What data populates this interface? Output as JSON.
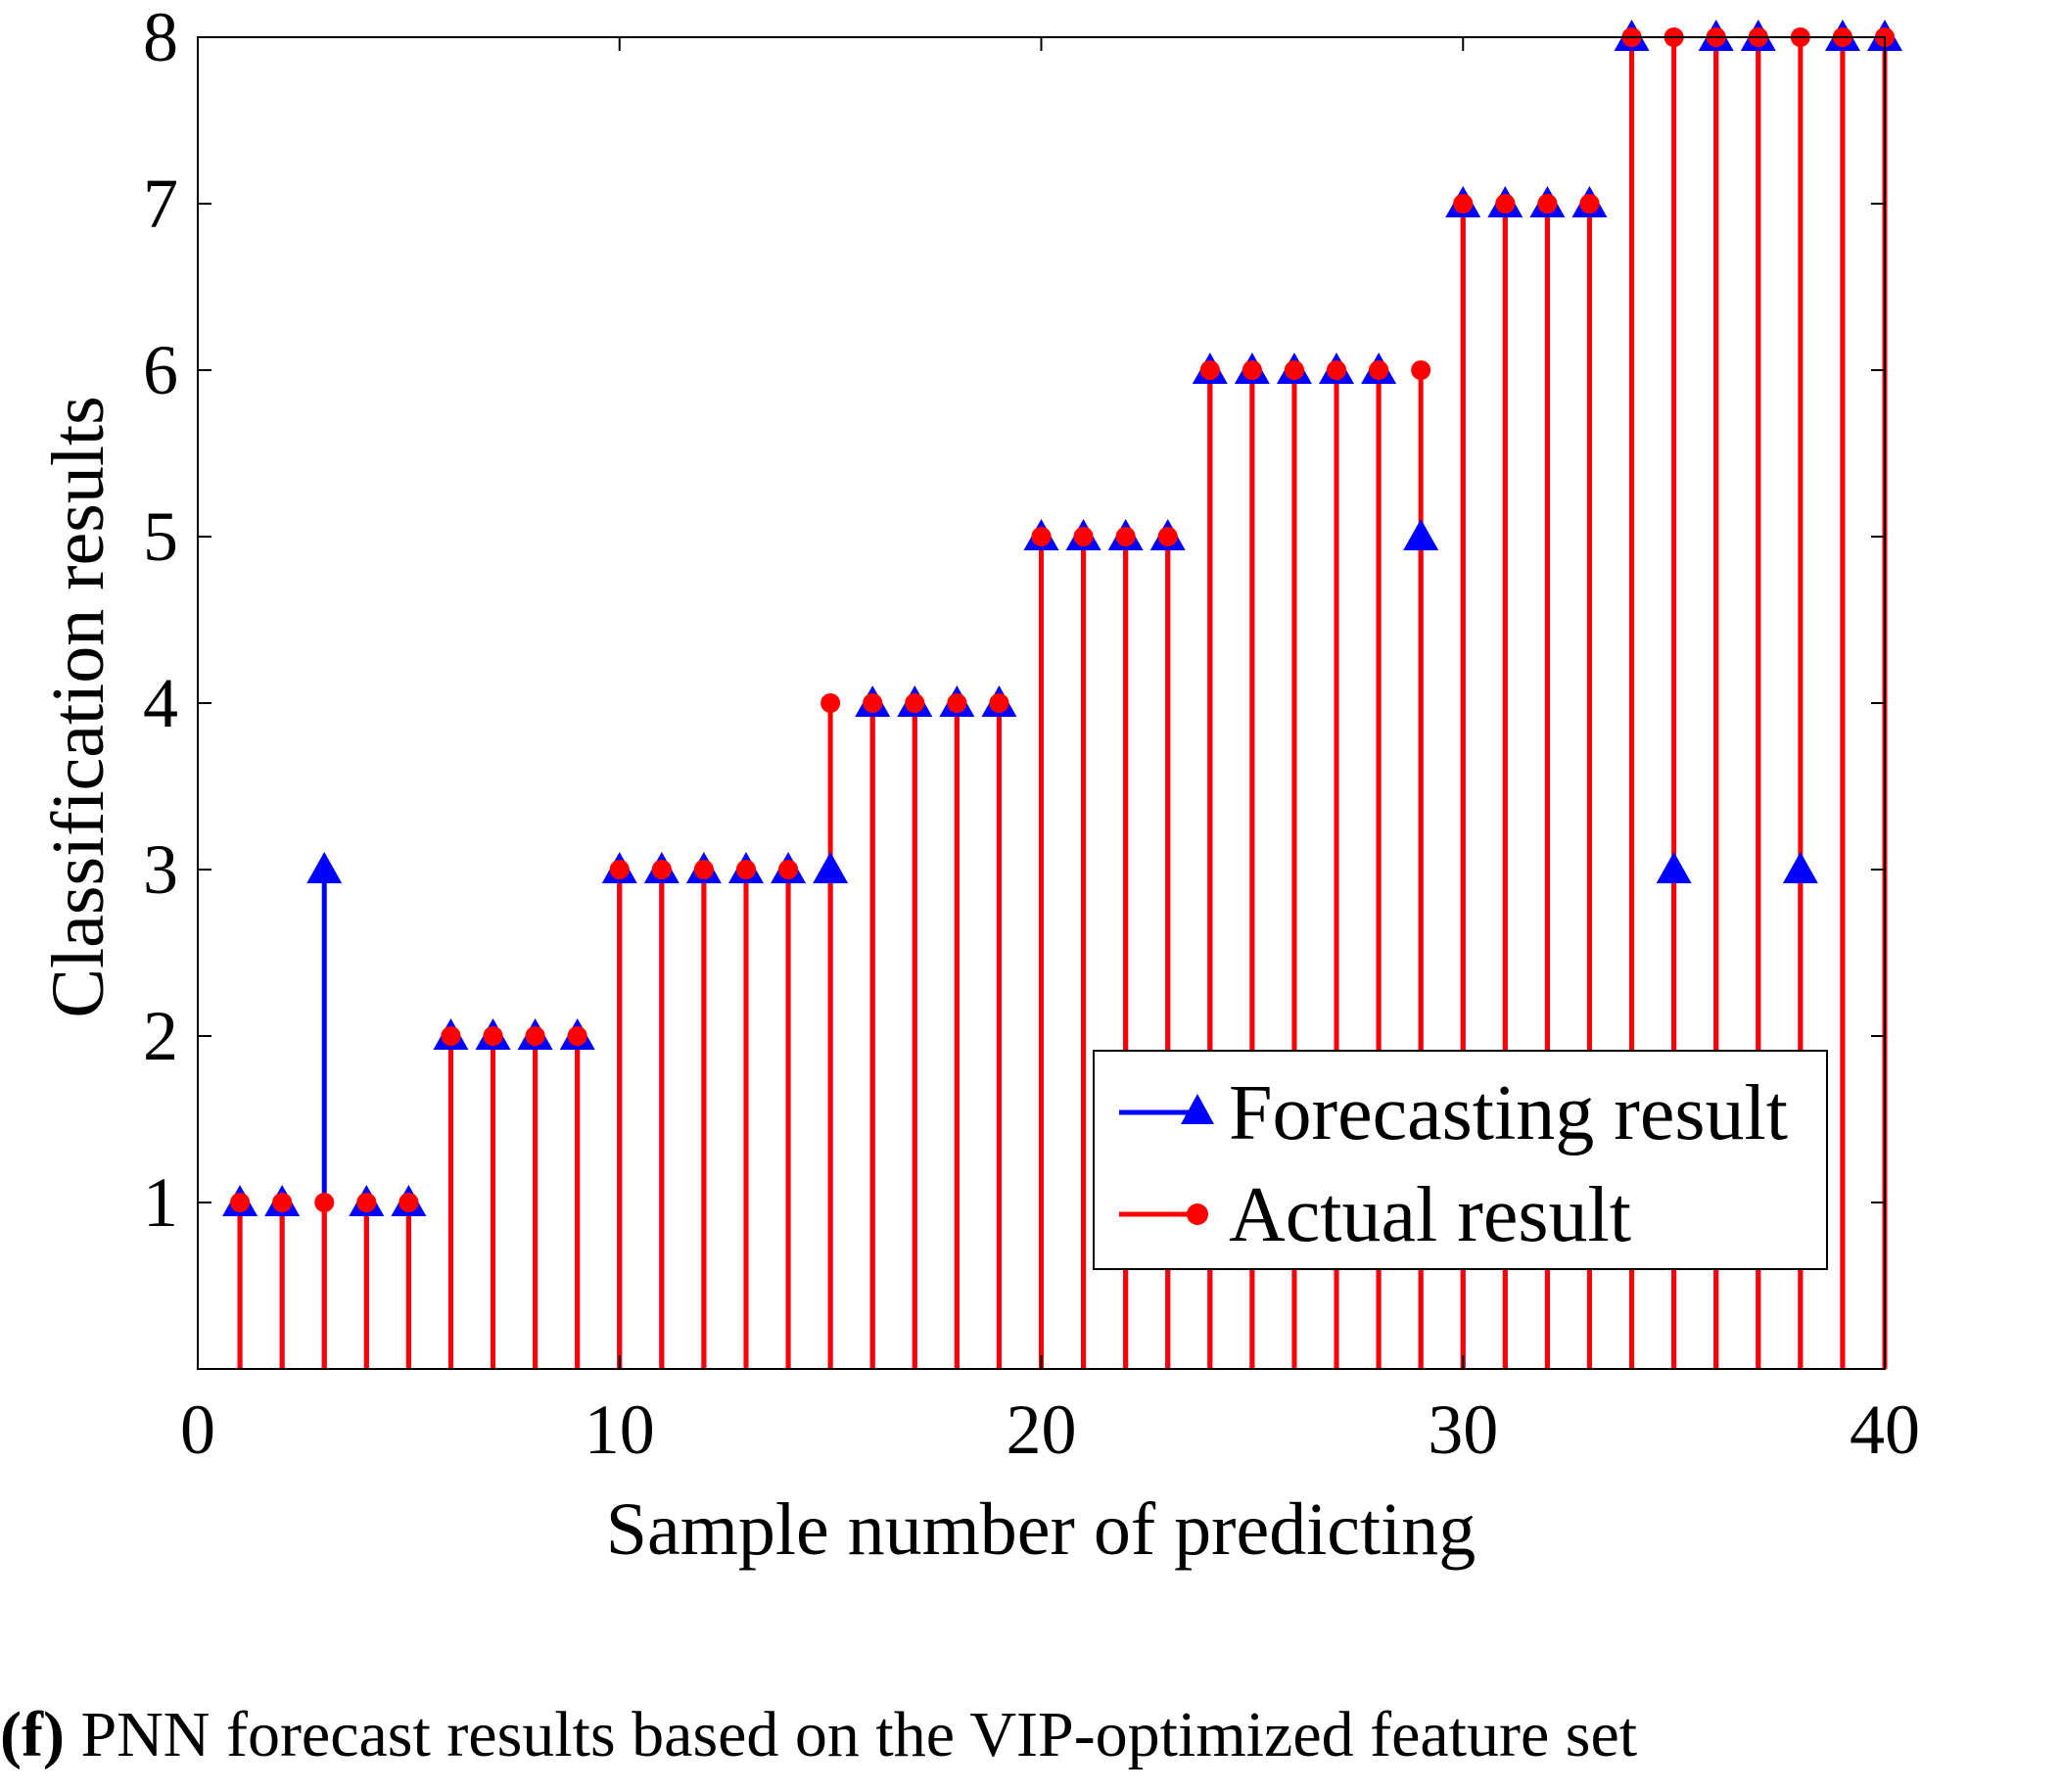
{
  "chart_data": {
    "type": "stem",
    "title": "",
    "xlabel": "Sample number of predicting",
    "ylabel": "Classification results",
    "xlim": [
      0,
      40
    ],
    "ylim": [
      0,
      8
    ],
    "xticks": [
      "0",
      "10",
      "20",
      "30",
      "40"
    ],
    "yticks": [
      "1",
      "2",
      "3",
      "4",
      "5",
      "6",
      "7",
      "8"
    ],
    "grid": false,
    "legend_position": "bottom-right",
    "x": [
      1,
      2,
      3,
      4,
      5,
      6,
      7,
      8,
      9,
      10,
      11,
      12,
      13,
      14,
      15,
      16,
      17,
      18,
      19,
      20,
      21,
      22,
      23,
      24,
      25,
      26,
      27,
      28,
      29,
      30,
      31,
      32,
      33,
      34,
      35,
      36,
      37,
      38,
      39,
      40
    ],
    "series": [
      {
        "name": "Forecasting result",
        "marker": "triangle",
        "color": "#0000ff",
        "values": [
          1,
          1,
          3,
          1,
          1,
          2,
          2,
          2,
          2,
          3,
          3,
          3,
          3,
          3,
          3,
          4,
          4,
          4,
          4,
          5,
          5,
          5,
          5,
          6,
          6,
          6,
          6,
          6,
          5,
          7,
          7,
          7,
          7,
          8,
          3,
          8,
          8,
          3,
          8,
          8
        ]
      },
      {
        "name": "Actual result",
        "marker": "circle",
        "color": "#ff0000",
        "values": [
          1,
          1,
          1,
          1,
          1,
          2,
          2,
          2,
          2,
          3,
          3,
          3,
          3,
          3,
          4,
          4,
          4,
          4,
          4,
          5,
          5,
          5,
          5,
          6,
          6,
          6,
          6,
          6,
          6,
          7,
          7,
          7,
          7,
          8,
          8,
          8,
          8,
          8,
          8,
          8
        ]
      }
    ]
  },
  "caption": {
    "label": "(f)",
    "text": " PNN forecast results based on the VIP-optimized feature set"
  }
}
